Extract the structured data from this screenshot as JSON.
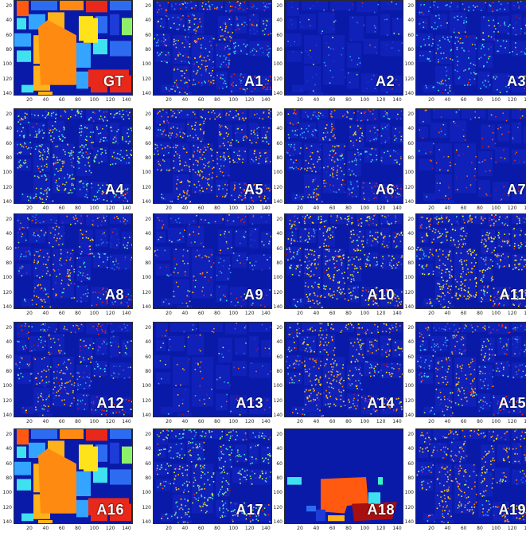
{
  "figure": {
    "panels": [
      {
        "label": "GT",
        "map_type": "ground-truth"
      },
      {
        "label": "A1",
        "map_type": "classification",
        "density": 0.55,
        "palette_bias": "mixed"
      },
      {
        "label": "A2",
        "map_type": "classification",
        "density": 0.12,
        "palette_bias": "blue"
      },
      {
        "label": "A3",
        "map_type": "classification",
        "density": 0.35,
        "palette_bias": "cyan"
      },
      {
        "label": "A4",
        "map_type": "classification",
        "density": 0.6,
        "palette_bias": "green"
      },
      {
        "label": "A5",
        "map_type": "classification",
        "density": 0.55,
        "palette_bias": "orange"
      },
      {
        "label": "A6",
        "map_type": "classification",
        "density": 0.5,
        "palette_bias": "mixed"
      },
      {
        "label": "A7",
        "map_type": "classification",
        "density": 0.15,
        "palette_bias": "red"
      },
      {
        "label": "A8",
        "map_type": "classification",
        "density": 0.45,
        "palette_bias": "mixed"
      },
      {
        "label": "A9",
        "map_type": "classification",
        "density": 0.25,
        "palette_bias": "mixed"
      },
      {
        "label": "A10",
        "map_type": "classification",
        "density": 0.65,
        "palette_bias": "yellow"
      },
      {
        "label": "A11",
        "map_type": "classification",
        "density": 0.7,
        "palette_bias": "yellow"
      },
      {
        "label": "A12",
        "map_type": "classification",
        "density": 0.45,
        "palette_bias": "mixed"
      },
      {
        "label": "A13",
        "map_type": "classification",
        "density": 0.12,
        "palette_bias": "mixed"
      },
      {
        "label": "A14",
        "map_type": "classification",
        "density": 0.55,
        "palette_bias": "orange"
      },
      {
        "label": "A15",
        "map_type": "classification",
        "density": 0.5,
        "palette_bias": "mixed"
      },
      {
        "label": "A16",
        "map_type": "ground-truth-like"
      },
      {
        "label": "A17",
        "map_type": "classification",
        "density": 0.55,
        "palette_bias": "green"
      },
      {
        "label": "A18",
        "map_type": "segmentation"
      },
      {
        "label": "A19",
        "map_type": "classification",
        "density": 0.5,
        "palette_bias": "orange"
      }
    ],
    "y_ticks": [
      "20",
      "40",
      "60",
      "80",
      "100",
      "120",
      "140"
    ],
    "x_ticks": [
      "20",
      "40",
      "60",
      "80",
      "100",
      "120",
      "140"
    ],
    "colors": {
      "background": "#0a1aa8",
      "classes": [
        "#1d3bd6",
        "#2d6cf0",
        "#33a4ff",
        "#3fe0f0",
        "#37f5c8",
        "#8df06a",
        "#d6f23a",
        "#ffe31a",
        "#ffb21a",
        "#ff8a12",
        "#ff5a10",
        "#e8281a",
        "#a80f10",
        "#7a1a8a",
        "#9b2fd6",
        "#5a2bd0"
      ]
    }
  }
}
